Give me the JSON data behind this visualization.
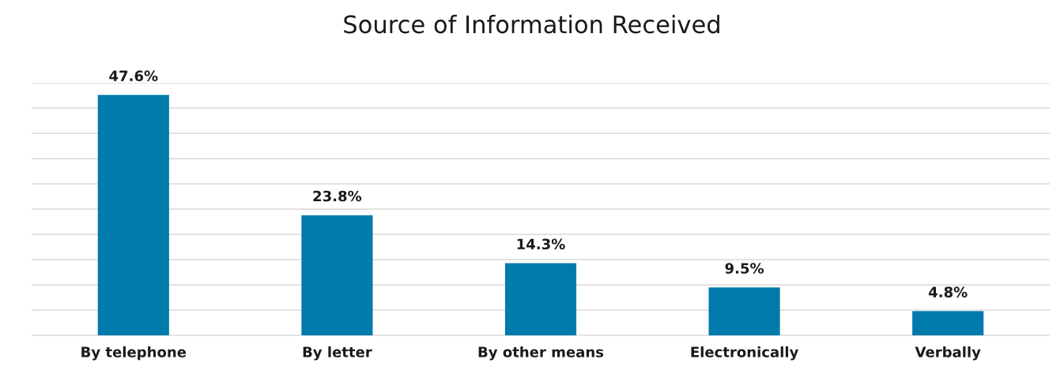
{
  "chart_data": {
    "type": "bar",
    "title": "Source of Information Received",
    "categories": [
      "By telephone",
      "By letter",
      "By other means",
      "Electronically",
      "Verbally"
    ],
    "values": [
      47.6,
      23.8,
      14.3,
      9.5,
      4.8
    ],
    "value_labels": [
      "47.6%",
      "23.8%",
      "14.3%",
      "9.5%",
      "4.8%"
    ],
    "color": "#007bab",
    "ylim": [
      0,
      50
    ],
    "yticks": [
      {
        "value": 0,
        "label": null
      },
      {
        "value": 5,
        "label": null
      },
      {
        "value": 10,
        "label": null
      },
      {
        "value": 15,
        "label": null
      },
      {
        "value": 20,
        "label": null
      },
      {
        "value": 25,
        "label": null
      },
      {
        "value": 30,
        "label": null
      },
      {
        "value": 35,
        "label": null
      },
      {
        "value": 40,
        "label": null
      },
      {
        "value": 45,
        "label": null
      },
      {
        "value": 50,
        "label": null
      }
    ],
    "grid": "y",
    "tick_labels": "x",
    "legend": false
  }
}
